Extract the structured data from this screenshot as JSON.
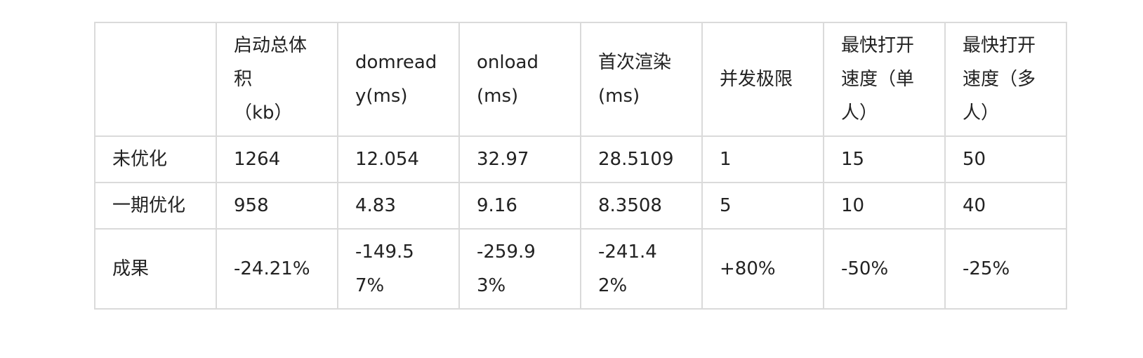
{
  "table": {
    "headers": [
      "",
      "启动总体积\n（kb）",
      "domready(ms)",
      "onload(ms)",
      "首次渲染(ms)",
      "并发极限",
      "最快打开速度（单人）",
      "最快打开速度（多人）"
    ],
    "rows": [
      [
        "未优化",
        "1264",
        "12.054",
        "32.97",
        "28.5109",
        "1",
        "15",
        "50"
      ],
      [
        "一期优化",
        "958",
        "4.83",
        "9.16",
        "8.3508",
        "5",
        "10",
        "40"
      ],
      [
        "成果",
        "-24.21%",
        "-149.57%",
        "-259.93%",
        "-241.42%",
        "+80%",
        "-50%",
        "-25%"
      ]
    ]
  }
}
